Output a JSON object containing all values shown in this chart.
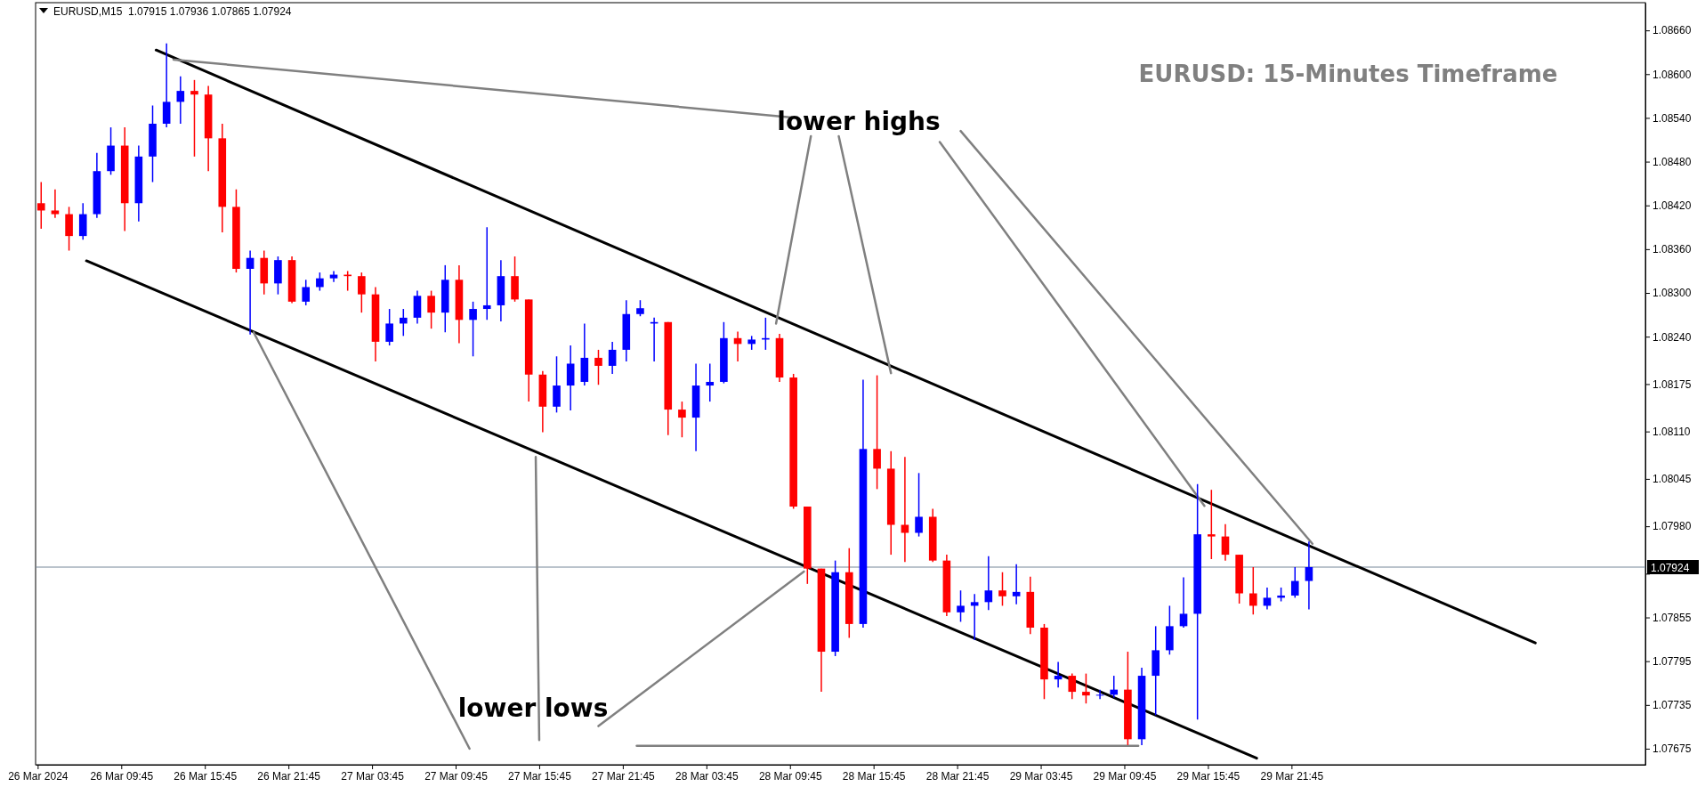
{
  "chart_data": {
    "type": "candlestick",
    "title": "EURUSD: 15-Minutes Timeframe",
    "subtitle": "EURUSD,M15  1.07915 1.07936 1.07865 1.07924",
    "xlim": [
      "2024-03-26T03:36",
      "2024-03-30T23:09"
    ],
    "ylim": [
      1.07653,
      1.08698
    ],
    "xticks": [
      {
        "value": "2024-03-26T03:45",
        "label": "26 Mar 2024"
      },
      {
        "value": "2024-03-26T09:45",
        "label": "26 Mar 09:45"
      },
      {
        "value": "2024-03-26T15:45",
        "label": "26 Mar 15:45"
      },
      {
        "value": "2024-03-26T21:45",
        "label": "26 Mar 21:45"
      },
      {
        "value": "2024-03-27T03:45",
        "label": "27 Mar 03:45"
      },
      {
        "value": "2024-03-27T09:45",
        "label": "27 Mar 09:45"
      },
      {
        "value": "2024-03-27T15:45",
        "label": "27 Mar 15:45"
      },
      {
        "value": "2024-03-27T21:45",
        "label": "27 Mar 21:45"
      },
      {
        "value": "2024-03-28T03:45",
        "label": "28 Mar 03:45"
      },
      {
        "value": "2024-03-28T09:45",
        "label": "28 Mar 09:45"
      },
      {
        "value": "2024-03-28T15:45",
        "label": "28 Mar 15:45"
      },
      {
        "value": "2024-03-28T21:45",
        "label": "28 Mar 21:45"
      },
      {
        "value": "2024-03-29T03:45",
        "label": "29 Mar 03:45"
      },
      {
        "value": "2024-03-29T09:45",
        "label": "29 Mar 09:45"
      },
      {
        "value": "2024-03-29T15:45",
        "label": "29 Mar 15:45"
      },
      {
        "value": "2024-03-29T21:45",
        "label": "29 Mar 21:45"
      }
    ],
    "yticks": [
      {
        "value": 1.0866,
        "label": "1.08660"
      },
      {
        "value": 1.086,
        "label": "1.08600"
      },
      {
        "value": 1.0854,
        "label": "1.08540"
      },
      {
        "value": 1.0848,
        "label": "1.08480"
      },
      {
        "value": 1.0842,
        "label": "1.08420"
      },
      {
        "value": 1.0836,
        "label": "1.08360"
      },
      {
        "value": 1.083,
        "label": "1.08300"
      },
      {
        "value": 1.0824,
        "label": "1.08240"
      },
      {
        "value": 1.08175,
        "label": "1.08175"
      },
      {
        "value": 1.0811,
        "label": "1.08110"
      },
      {
        "value": 1.08045,
        "label": "1.08045"
      },
      {
        "value": 1.0798,
        "label": "1.07980"
      },
      {
        "value": 1.07915,
        "label": null
      },
      {
        "value": 1.07855,
        "label": "1.07855"
      },
      {
        "value": 1.07795,
        "label": "1.07795"
      },
      {
        "value": 1.07735,
        "label": "1.07735"
      },
      {
        "value": 1.07675,
        "label": "1.07675"
      }
    ],
    "x": [
      "2024-03-26T04:00",
      "2024-03-26T05:00",
      "2024-03-26T06:00",
      "2024-03-26T07:00",
      "2024-03-26T08:00",
      "2024-03-26T09:00",
      "2024-03-26T10:00",
      "2024-03-26T11:00",
      "2024-03-26T12:00",
      "2024-03-26T13:00",
      "2024-03-26T14:00",
      "2024-03-26T15:00",
      "2024-03-26T16:00",
      "2024-03-26T17:00",
      "2024-03-26T18:00",
      "2024-03-26T19:00",
      "2024-03-26T20:00",
      "2024-03-26T21:00",
      "2024-03-26T22:00",
      "2024-03-26T23:00",
      "2024-03-27T00:00",
      "2024-03-27T01:00",
      "2024-03-27T02:00",
      "2024-03-27T03:00",
      "2024-03-27T04:00",
      "2024-03-27T05:00",
      "2024-03-27T06:00",
      "2024-03-27T07:00",
      "2024-03-27T08:00",
      "2024-03-27T09:00",
      "2024-03-27T10:00",
      "2024-03-27T11:00",
      "2024-03-27T12:00",
      "2024-03-27T13:00",
      "2024-03-27T14:00",
      "2024-03-27T15:00",
      "2024-03-27T16:00",
      "2024-03-27T17:00",
      "2024-03-27T18:00",
      "2024-03-27T19:00",
      "2024-03-27T20:00",
      "2024-03-27T21:00",
      "2024-03-27T22:00",
      "2024-03-27T23:00",
      "2024-03-28T00:00",
      "2024-03-28T01:00",
      "2024-03-28T02:00",
      "2024-03-28T03:00",
      "2024-03-28T04:00",
      "2024-03-28T05:00",
      "2024-03-28T06:00",
      "2024-03-28T07:00",
      "2024-03-28T08:00",
      "2024-03-28T09:00",
      "2024-03-28T10:00",
      "2024-03-28T11:00",
      "2024-03-28T12:00",
      "2024-03-28T13:00",
      "2024-03-28T14:00",
      "2024-03-28T15:00",
      "2024-03-28T16:00",
      "2024-03-28T17:00",
      "2024-03-28T18:00",
      "2024-03-28T19:00",
      "2024-03-28T20:00",
      "2024-03-28T21:00",
      "2024-03-28T22:00",
      "2024-03-28T23:00",
      "2024-03-29T00:00",
      "2024-03-29T01:00",
      "2024-03-29T02:00",
      "2024-03-29T03:00",
      "2024-03-29T04:00",
      "2024-03-29T05:00",
      "2024-03-29T06:00",
      "2024-03-29T07:00",
      "2024-03-29T08:00",
      "2024-03-29T09:00",
      "2024-03-29T10:00",
      "2024-03-29T11:00",
      "2024-03-29T12:00",
      "2024-03-29T13:00",
      "2024-03-29T14:00",
      "2024-03-29T15:00",
      "2024-03-29T16:00",
      "2024-03-29T17:00",
      "2024-03-29T18:00",
      "2024-03-29T19:00",
      "2024-03-29T20:00",
      "2024-03-29T21:00",
      "2024-03-29T22:00",
      "2024-03-29T23:00"
    ],
    "ohlc": [
      [
        1.08423,
        1.08452,
        1.08388,
        1.08413
      ],
      [
        1.08413,
        1.08442,
        1.08403,
        1.08408
      ],
      [
        1.08408,
        1.08418,
        1.08358,
        1.08378
      ],
      [
        1.08378,
        1.08423,
        1.08373,
        1.08408
      ],
      [
        1.08408,
        1.08492,
        1.08403,
        1.08467
      ],
      [
        1.08467,
        1.08527,
        1.08462,
        1.08502
      ],
      [
        1.08502,
        1.08527,
        1.08385,
        1.08423
      ],
      [
        1.08423,
        1.08502,
        1.08398,
        1.08487
      ],
      [
        1.08487,
        1.08557,
        1.08452,
        1.08532
      ],
      [
        1.08532,
        1.08642,
        1.08527,
        1.08562
      ],
      [
        1.08562,
        1.08597,
        1.08532,
        1.08577
      ],
      [
        1.08577,
        1.08592,
        1.08487,
        1.08572
      ],
      [
        1.08572,
        1.08584,
        1.08467,
        1.08512
      ],
      [
        1.08512,
        1.08532,
        1.08383,
        1.08418
      ],
      [
        1.08418,
        1.08442,
        1.08328,
        1.08333
      ],
      [
        1.08333,
        1.08358,
        1.08243,
        1.08348
      ],
      [
        1.08348,
        1.08358,
        1.08298,
        1.08313
      ],
      [
        1.08313,
        1.0835,
        1.08298,
        1.08345
      ],
      [
        1.08345,
        1.0835,
        1.08286,
        1.08288
      ],
      [
        1.08288,
        1.08318,
        1.08283,
        1.08308
      ],
      [
        1.08308,
        1.08328,
        1.08303,
        1.0832
      ],
      [
        1.0832,
        1.0833,
        1.08315,
        1.08325
      ],
      [
        1.08325,
        1.0833,
        1.08303,
        1.08323
      ],
      [
        1.08323,
        1.08328,
        1.08273,
        1.08298
      ],
      [
        1.08298,
        1.08308,
        1.08206,
        1.08233
      ],
      [
        1.08233,
        1.08278,
        1.08228,
        1.08258
      ],
      [
        1.08258,
        1.08278,
        1.08241,
        1.08266
      ],
      [
        1.08266,
        1.08303,
        1.08258,
        1.08296
      ],
      [
        1.08296,
        1.08303,
        1.08251,
        1.08273
      ],
      [
        1.08273,
        1.08338,
        1.08246,
        1.08318
      ],
      [
        1.08318,
        1.08338,
        1.08231,
        1.08263
      ],
      [
        1.08263,
        1.08288,
        1.08213,
        1.08278
      ],
      [
        1.08278,
        1.0839,
        1.08263,
        1.08283
      ],
      [
        1.08283,
        1.08345,
        1.08261,
        1.08323
      ],
      [
        1.08323,
        1.0835,
        1.08288,
        1.08291
      ],
      [
        1.08291,
        1.08291,
        1.08151,
        1.08188
      ],
      [
        1.08188,
        1.08193,
        1.08109,
        1.08144
      ],
      [
        1.08144,
        1.08213,
        1.08136,
        1.08173
      ],
      [
        1.08173,
        1.08228,
        1.08139,
        1.08203
      ],
      [
        1.08178,
        1.08258,
        1.08173,
        1.08211
      ],
      [
        1.08211,
        1.08222,
        1.08174,
        1.082
      ],
      [
        1.082,
        1.08233,
        1.08189,
        1.08222
      ],
      [
        1.08222,
        1.0829,
        1.08206,
        1.08271
      ],
      [
        1.08271,
        1.0829,
        1.08268,
        1.08279
      ],
      [
        1.08258,
        1.08266,
        1.08206,
        1.0826
      ],
      [
        1.0826,
        1.0826,
        1.08105,
        1.0814
      ],
      [
        1.0814,
        1.08151,
        1.08102,
        1.08129
      ],
      [
        1.08129,
        1.08203,
        1.08083,
        1.08173
      ],
      [
        1.08173,
        1.08203,
        1.08151,
        1.08178
      ],
      [
        1.08178,
        1.0826,
        1.08176,
        1.08238
      ],
      [
        1.08238,
        1.08247,
        1.08206,
        1.0823
      ],
      [
        1.0823,
        1.08241,
        1.08222,
        1.08236
      ],
      [
        1.08236,
        1.08266,
        1.08222,
        1.08238
      ],
      [
        1.08238,
        1.08244,
        1.08178,
        1.08184
      ],
      [
        1.08184,
        1.08189,
        1.08004,
        1.08007
      ],
      [
        1.08007,
        1.08007,
        1.07901,
        1.07922
      ],
      [
        1.07922,
        1.07922,
        1.07753,
        1.07808
      ],
      [
        1.07808,
        1.07933,
        1.07802,
        1.07917
      ],
      [
        1.07917,
        1.0795,
        1.07827,
        1.07846
      ],
      [
        1.07846,
        1.08181,
        1.07841,
        1.08086
      ],
      [
        1.08086,
        1.08187,
        1.08031,
        1.08059
      ],
      [
        1.08059,
        1.08083,
        1.07941,
        1.07982
      ],
      [
        1.07982,
        1.08075,
        1.07931,
        1.07971
      ],
      [
        1.07971,
        1.08053,
        1.07966,
        1.07993
      ],
      [
        1.07993,
        1.08004,
        1.07931,
        1.07933
      ],
      [
        1.07933,
        1.07941,
        1.07857,
        1.07862
      ],
      [
        1.07862,
        1.07892,
        1.07849,
        1.07871
      ],
      [
        1.07871,
        1.07887,
        1.07824,
        1.07876
      ],
      [
        1.07876,
        1.07939,
        1.07865,
        1.07892
      ],
      [
        1.07892,
        1.07917,
        1.07871,
        1.07884
      ],
      [
        1.07884,
        1.07928,
        1.07873,
        1.0789
      ],
      [
        1.0789,
        1.07911,
        1.07832,
        1.07841
      ],
      [
        1.07841,
        1.07846,
        1.07743,
        1.0777
      ],
      [
        1.0777,
        1.07794,
        1.07759,
        1.07775
      ],
      [
        1.07775,
        1.07778,
        1.07743,
        1.07753
      ],
      [
        1.07753,
        1.07778,
        1.07737,
        1.07748
      ],
      [
        1.07748,
        1.07756,
        1.07743,
        1.07749
      ],
      [
        1.07749,
        1.07775,
        1.07745,
        1.07756
      ],
      [
        1.07756,
        1.07808,
        1.0768,
        1.07688
      ],
      [
        1.07688,
        1.07786,
        1.0768,
        1.07775
      ],
      [
        1.07775,
        1.07843,
        1.07721,
        1.0781
      ],
      [
        1.0781,
        1.07871,
        1.07804,
        1.07843
      ],
      [
        1.07843,
        1.0791,
        1.07841,
        1.0786
      ],
      [
        1.0786,
        1.08038,
        1.07715,
        1.07969
      ],
      [
        1.07969,
        1.0803,
        1.07935,
        1.07966
      ],
      [
        1.07966,
        1.07983,
        1.07933,
        1.07941
      ],
      [
        1.07941,
        1.07941,
        1.07874,
        1.07888
      ],
      [
        1.07888,
        1.07924,
        1.07859,
        1.07871
      ],
      [
        1.07871,
        1.07896,
        1.07866,
        1.07882
      ],
      [
        1.07882,
        1.07896,
        1.07877,
        1.07885
      ],
      [
        1.07885,
        1.07924,
        1.07882,
        1.07905
      ],
      [
        1.07905,
        1.07959,
        1.07866,
        1.07924
      ]
    ],
    "colors": [
      "#ff0000",
      "#ff0000",
      "#ff0000",
      "#0000ff",
      "#0000ff",
      "#0000ff",
      "#ff0000",
      "#0000ff",
      "#0000ff",
      "#0000ff",
      "#0000ff",
      "#ff0000",
      "#ff0000",
      "#ff0000",
      "#ff0000",
      "#0000ff",
      "#ff0000",
      "#0000ff",
      "#ff0000",
      "#0000ff",
      "#0000ff",
      "#0000ff",
      "#ff0000",
      "#ff0000",
      "#ff0000",
      "#0000ff",
      "#0000ff",
      "#0000ff",
      "#ff0000",
      "#0000ff",
      "#ff0000",
      "#0000ff",
      "#0000ff",
      "#0000ff",
      "#ff0000",
      "#ff0000",
      "#ff0000",
      "#0000ff",
      "#0000ff",
      "#0000ff",
      "#ff0000",
      "#0000ff",
      "#0000ff",
      "#0000ff",
      "#0000ff",
      "#ff0000",
      "#ff0000",
      "#0000ff",
      "#0000ff",
      "#0000ff",
      "#ff0000",
      "#0000ff",
      "#0000ff",
      "#ff0000",
      "#ff0000",
      "#ff0000",
      "#ff0000",
      "#0000ff",
      "#ff0000",
      "#0000ff",
      "#ff0000",
      "#ff0000",
      "#ff0000",
      "#0000ff",
      "#ff0000",
      "#ff0000",
      "#0000ff",
      "#0000ff",
      "#0000ff",
      "#ff0000",
      "#0000ff",
      "#ff0000",
      "#ff0000",
      "#0000ff",
      "#ff0000",
      "#ff0000",
      "#0000ff",
      "#0000ff",
      "#ff0000",
      "#0000ff",
      "#0000ff",
      "#0000ff",
      "#0000ff",
      "#0000ff",
      "#ff0000",
      "#ff0000",
      "#ff0000",
      "#ff0000",
      "#0000ff",
      "#0000ff",
      "#0000ff",
      "#0000ff"
    ],
    "series": [
      {
        "type": "line",
        "color": "#000000",
        "x": [
          "2024-03-26T12:15",
          "2024-03-30T15:15"
        ],
        "values": [
          1.08633,
          1.0782
        ]
      },
      {
        "type": "line",
        "color": "#000000",
        "x": [
          "2024-03-26T07:15",
          "2024-03-29T19:15"
        ],
        "values": [
          1.08344,
          1.07662
        ]
      },
      {
        "type": "line",
        "color": "#808080",
        "x": [
          "2024-03-26T13:30",
          "2024-03-28T10:15"
        ],
        "values": [
          1.0862,
          1.0854
        ]
      },
      {
        "type": "line",
        "color": "#808080",
        "x": [
          "2024-03-28T11:15",
          "2024-03-28T08:45"
        ],
        "values": [
          1.08515,
          1.08258
        ]
      },
      {
        "type": "line",
        "color": "#808080",
        "x": [
          "2024-03-28T13:15",
          "2024-03-28T17:00"
        ],
        "values": [
          1.08515,
          1.0819
        ]
      },
      {
        "type": "line",
        "color": "#808080",
        "x": [
          "2024-03-28T20:30",
          "2024-03-29T15:30"
        ],
        "values": [
          1.08507,
          1.08008
        ]
      },
      {
        "type": "line",
        "color": "#808080",
        "x": [
          "2024-03-28T22:00",
          "2024-03-29T23:15"
        ],
        "values": [
          1.08522,
          1.07956
        ]
      },
      {
        "type": "line",
        "color": "#808080",
        "x": [
          "2024-03-27T10:45",
          "2024-03-26T19:15"
        ],
        "values": [
          1.07675,
          1.08246
        ]
      },
      {
        "type": "line",
        "color": "#808080",
        "x": [
          "2024-03-27T15:45",
          "2024-03-27T15:30"
        ],
        "values": [
          1.07687,
          1.08075
        ]
      },
      {
        "type": "line",
        "color": "#808080",
        "x": [
          "2024-03-27T20:00",
          "2024-03-28T10:45"
        ],
        "values": [
          1.07706,
          1.07918
        ]
      },
      {
        "type": "line",
        "color": "#808080",
        "x": [
          "2024-03-27T22:45",
          "2024-03-29T10:45"
        ],
        "values": [
          1.07679,
          1.07679
        ]
      }
    ],
    "ref_lines": [
      {
        "axis": "y",
        "value": 1.07924,
        "label": "1.07924",
        "color": "#778899"
      }
    ],
    "annotations": [
      "lower highs",
      "lower lows"
    ]
  }
}
